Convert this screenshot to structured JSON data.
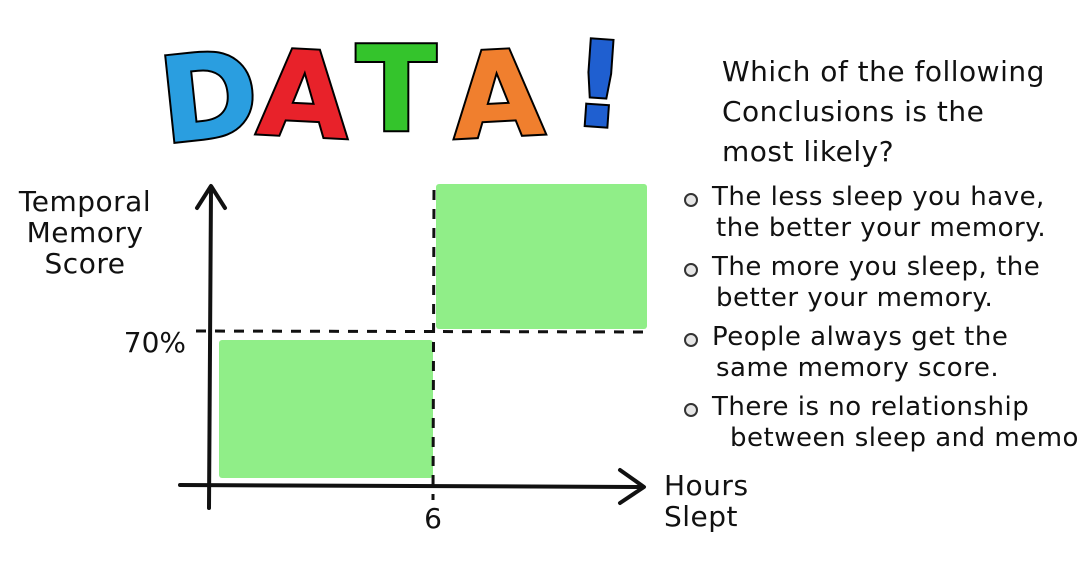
{
  "title": {
    "letters": [
      {
        "char": "D",
        "color": "#2a9ee0"
      },
      {
        "char": "A",
        "color": "#e8222a"
      },
      {
        "char": "T",
        "color": "#34c42c"
      },
      {
        "char": "A",
        "color": "#f07f2e"
      },
      {
        "char": "!",
        "color": "#1f5fd0"
      }
    ]
  },
  "question": {
    "lines": [
      "Which of the following",
      "Conclusions is the",
      "most likely?"
    ]
  },
  "options": [
    {
      "line1": "The less sleep you have,",
      "line2": "the better your memory."
    },
    {
      "line1": "The more you sleep, the",
      "line2": "better your memory."
    },
    {
      "line1": "People always get the",
      "line2": "same memory score."
    },
    {
      "line1": "There is no relationship",
      "line2": "between sleep and memory."
    }
  ],
  "chart_data": {
    "type": "bar",
    "ylabel": "Temporal Memory Score",
    "xlabel": "Hours Slept",
    "x_tick": "6",
    "y_tick": "70%",
    "bar_color": "#90ee88",
    "series": [
      {
        "x_range": [
          "0",
          "6"
        ],
        "value": "below 70%"
      },
      {
        "x_range": [
          "6",
          ""
        ],
        "value": "above 70%"
      }
    ]
  }
}
